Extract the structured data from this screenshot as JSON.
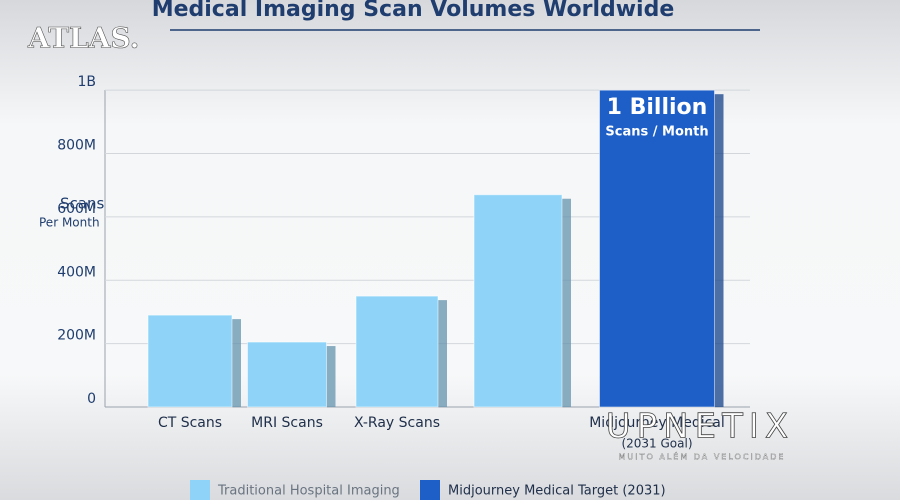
{
  "chart_data": {
    "type": "bar",
    "title": "Medical Imaging Scan Volumes Worldwide",
    "y_label": "Scans",
    "y_label_sub": "Per Month",
    "categories": [
      "CT Scans",
      "MRI Scans",
      "X-Ray Scans",
      null,
      "Midjourney Medical"
    ],
    "category_sublabels": [
      null,
      null,
      null,
      null,
      "(2031 Goal)"
    ],
    "series": [
      {
        "name": "Traditional Hospital Imaging",
        "color": "#8fd4f8",
        "values": [
          290000000,
          205000000,
          350000000,
          670000000,
          null
        ]
      },
      {
        "name": "Midjourney Medical Target (2031)",
        "color": "#1d5fc6",
        "values": [
          null,
          null,
          null,
          null,
          1000000000
        ],
        "value_labels": [
          null,
          null,
          null,
          null,
          "1 Billion"
        ]
      }
    ],
    "annotation": "Scans / Month",
    "ylim": [
      0,
      1070000000
    ],
    "yticks": [
      0,
      {
        "value": 200000000,
        "label": "200M"
      },
      {
        "value": 400000000,
        "label": "400M"
      },
      {
        "value": 600000000,
        "label": "600M"
      },
      {
        "value": 800000000,
        "label": "800M"
      },
      {
        "value": 1000000000,
        "label": "1B"
      }
    ],
    "grid": true
  },
  "watermarks": {
    "top_left": "ATLAS.",
    "bottom_right": "UPNETIX",
    "bottom_right_tagline": "MUITO ALÉM DA VELOCIDADE"
  }
}
